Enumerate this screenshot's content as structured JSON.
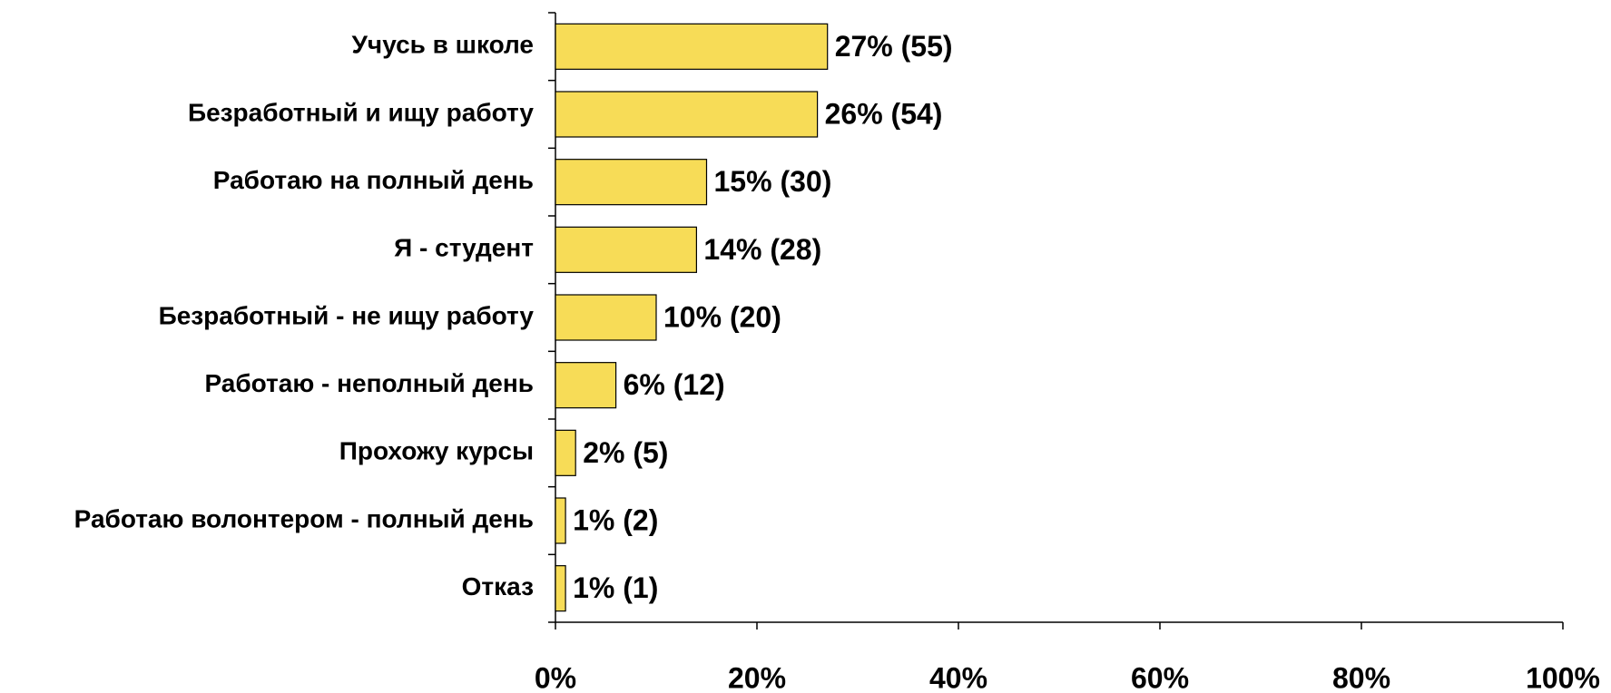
{
  "chart_data": {
    "type": "barh",
    "categories": [
      "Учусь в школе",
      "Безработный и ищу работу",
      "Работаю на полный день",
      "Я - студент",
      "Безработный - не ищу работу",
      "Работаю - неполный день",
      "Прохожу курсы",
      "Работаю волонтером - полный день",
      "Отказ"
    ],
    "values": [
      27,
      26,
      15,
      14,
      10,
      6,
      2,
      1,
      1
    ],
    "value_labels": [
      "27% (55)",
      "26% (54)",
      "15% (30)",
      "14% (28)",
      "10% (20)",
      "6% (12)",
      "2% (5)",
      "1% (2)",
      "1% (1)"
    ],
    "color": "#f7dc57",
    "xlim": [
      0,
      100
    ],
    "xticks": [
      {
        "value": 0,
        "label": "0%"
      },
      {
        "value": 20,
        "label": "20%"
      },
      {
        "value": 40,
        "label": "40%"
      },
      {
        "value": 60,
        "label": "60%"
      },
      {
        "value": 80,
        "label": "80%"
      },
      {
        "value": 100,
        "label": "100%"
      }
    ]
  }
}
